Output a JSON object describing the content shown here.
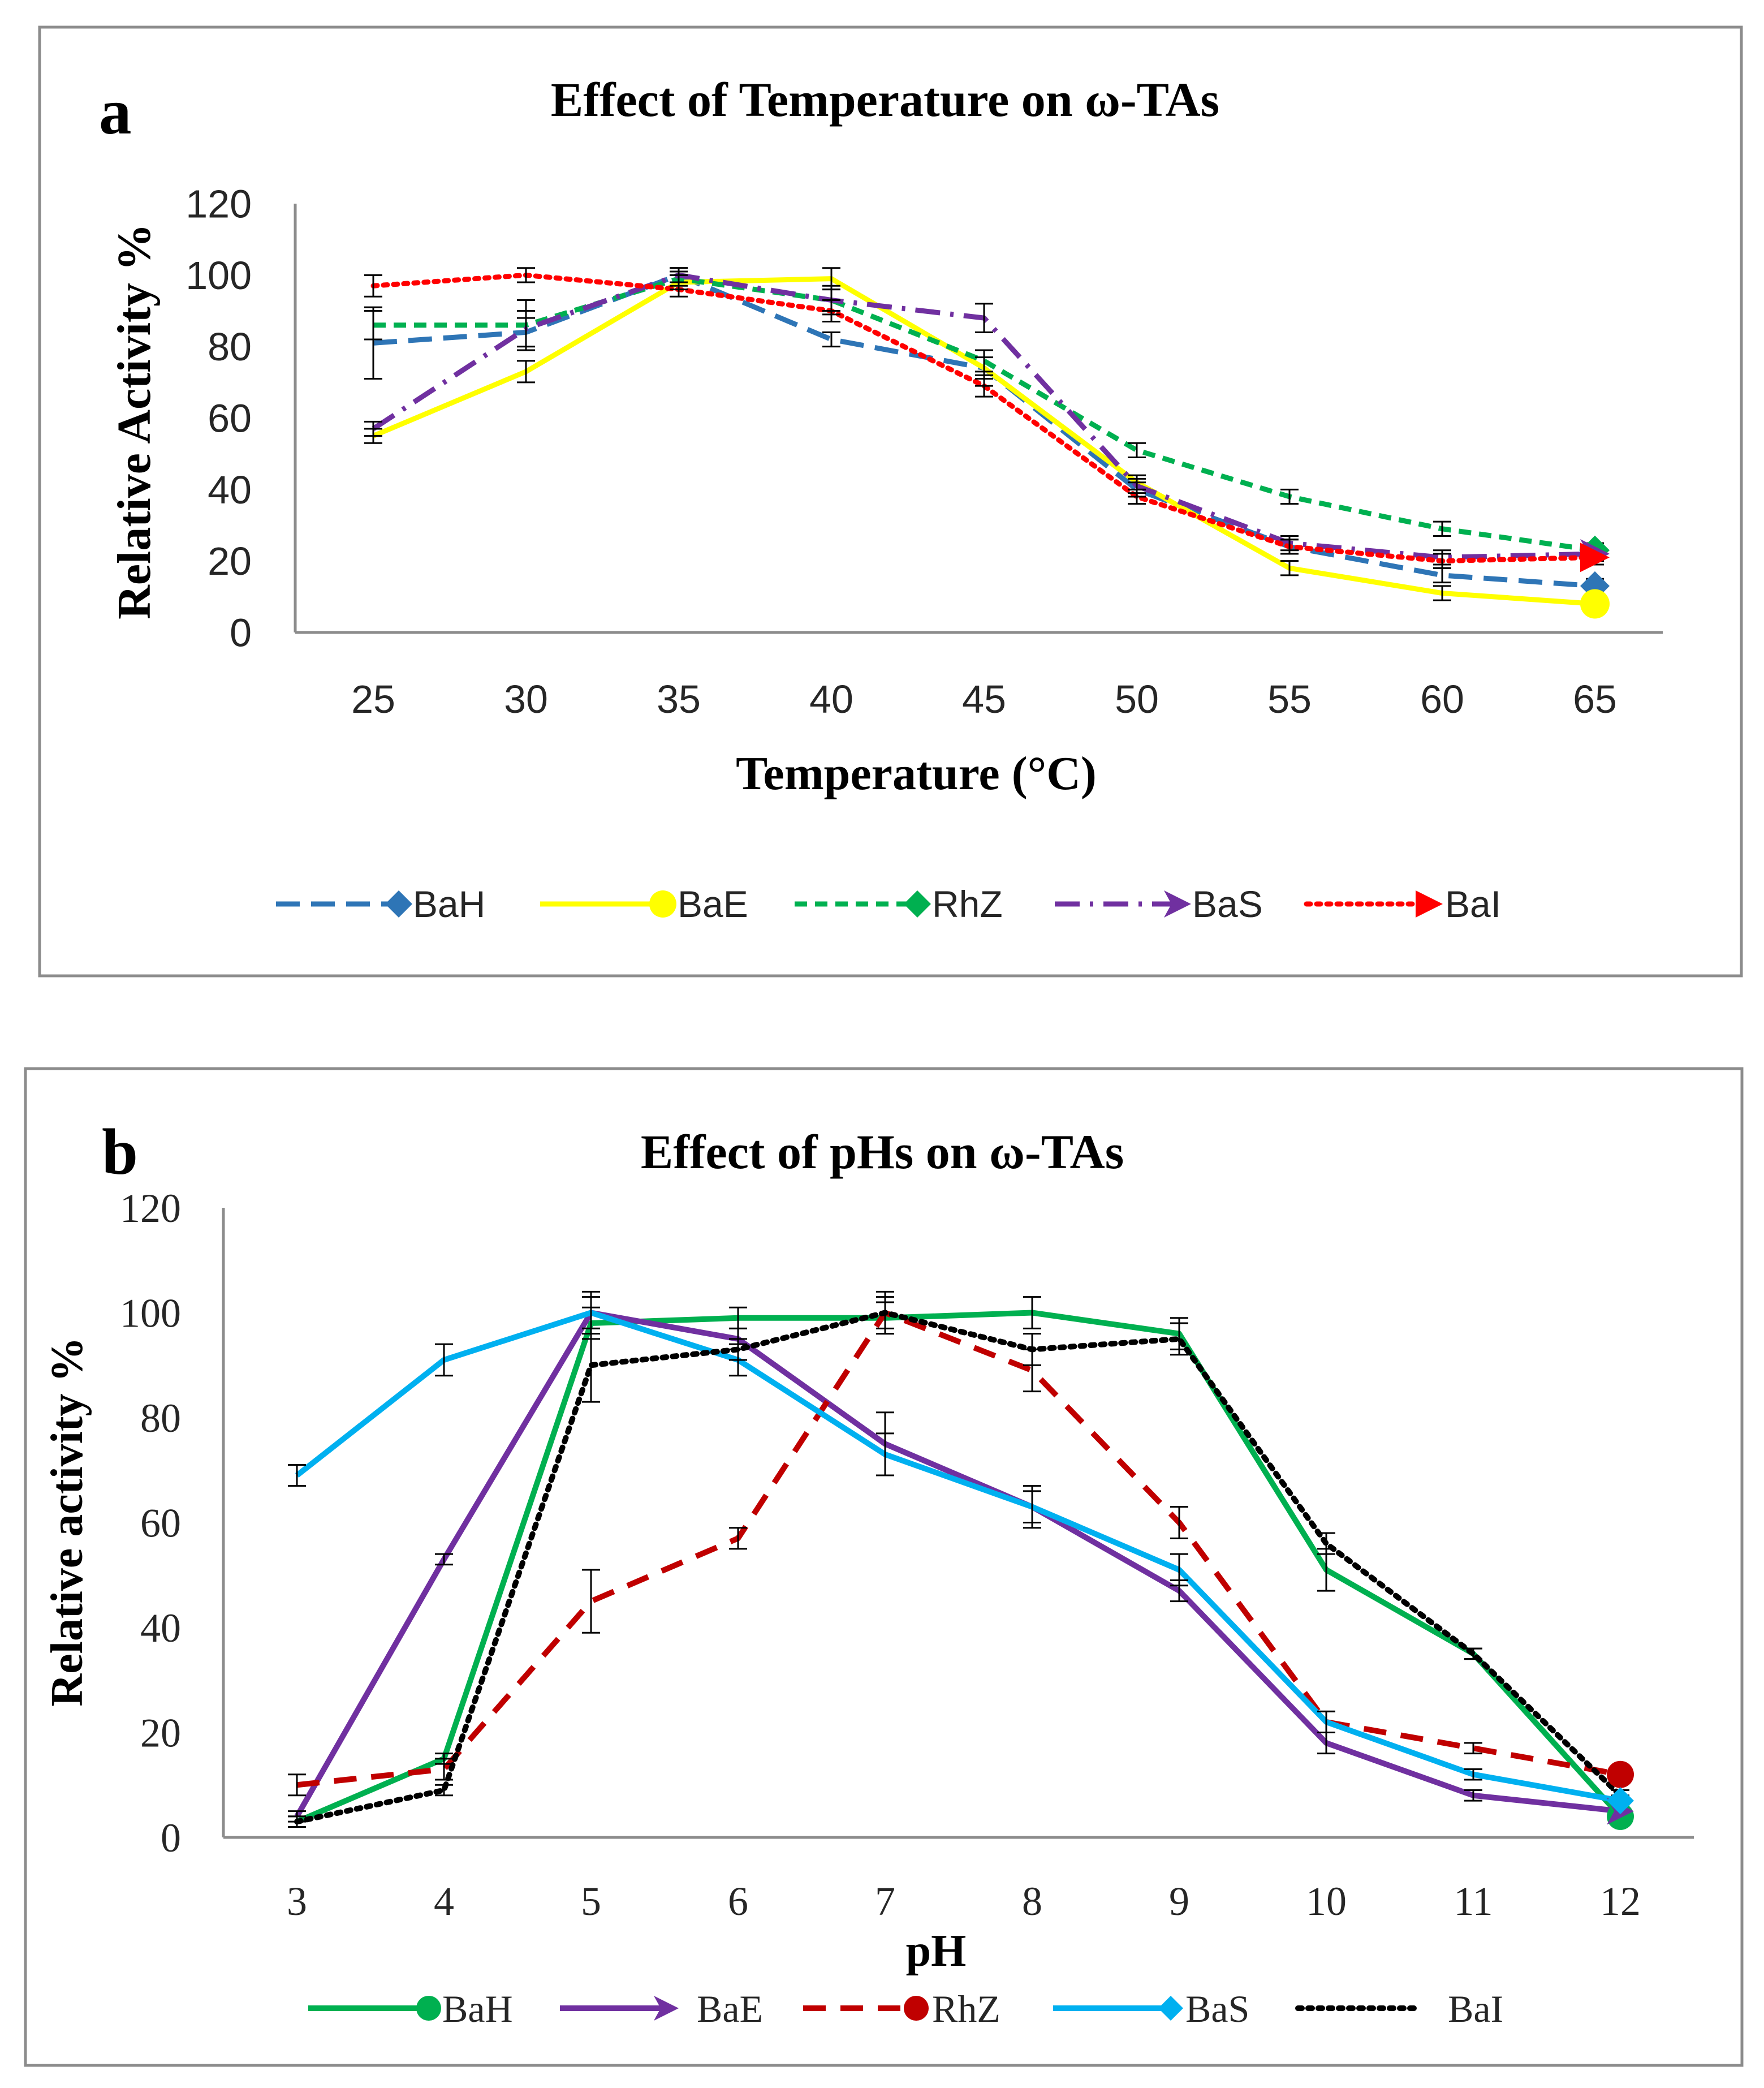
{
  "panels": [
    {
      "label": "a"
    },
    {
      "label": "b"
    }
  ],
  "chart_data": [
    {
      "type": "line",
      "title": "Effect of Temperature on ω-TAs",
      "xlabel": "Temperature (°C)",
      "ylabel": "Relative Activity %",
      "categories": [
        "25",
        "30",
        "35",
        "40",
        "45",
        "50",
        "55",
        "60",
        "65"
      ],
      "ylim": [
        0,
        120
      ],
      "yticks": [
        0,
        20,
        40,
        60,
        80,
        100,
        120
      ],
      "grid": false,
      "legend_position": "bottom",
      "series": [
        {
          "name": "BaH",
          "color": "#2e75b6",
          "dash": "long-dash",
          "marker": "diamond",
          "values": [
            81,
            84,
            100,
            82,
            74,
            40,
            24,
            16,
            13
          ],
          "errors": [
            10,
            4,
            2,
            2,
            5,
            2,
            2,
            2,
            2
          ]
        },
        {
          "name": "BaE",
          "color": "#ffff00",
          "dash": "solid",
          "marker": "circle",
          "values": [
            55,
            73,
            98,
            99,
            74,
            42,
            18,
            11,
            8
          ],
          "errors": [
            2,
            3,
            2,
            3,
            3,
            2,
            2,
            2,
            2
          ]
        },
        {
          "name": "RhZ",
          "color": "#00b050",
          "dash": "short-dash",
          "marker": "diamond",
          "values": [
            86,
            86,
            99,
            93,
            76,
            51,
            38,
            29,
            23
          ],
          "errors": [
            4,
            7,
            2,
            4,
            3,
            2,
            2,
            2,
            2
          ]
        },
        {
          "name": "BaS",
          "color": "#7030a0",
          "dash": "dash-dot",
          "marker": "arrow",
          "values": [
            57,
            85,
            100,
            93,
            88,
            41,
            25,
            21,
            22
          ],
          "errors": [
            2,
            5,
            2,
            3,
            4,
            2,
            2,
            2,
            2
          ]
        },
        {
          "name": "BaI",
          "color": "#ff0000",
          "dash": "dotted",
          "marker": "triangle",
          "values": [
            97,
            100,
            96,
            90,
            69,
            38,
            24,
            20,
            21
          ],
          "errors": [
            3,
            2,
            2,
            3,
            3,
            2,
            2,
            2,
            2
          ]
        }
      ]
    },
    {
      "type": "line",
      "title": "Effect of pHs on ω-TAs",
      "xlabel": "pH",
      "ylabel": "Relative activity %",
      "categories": [
        "3",
        "4",
        "5",
        "6",
        "7",
        "8",
        "9",
        "10",
        "11",
        "12"
      ],
      "ylim": [
        0,
        120
      ],
      "yticks": [
        0,
        20,
        40,
        60,
        80,
        100,
        120
      ],
      "grid": false,
      "legend_position": "bottom",
      "series": [
        {
          "name": "BaH",
          "color": "#00b050",
          "dash": "solid",
          "marker": "circle",
          "values": [
            3,
            15,
            98,
            99,
            99,
            100,
            96,
            51,
            35,
            4
          ],
          "errors": [
            1,
            1,
            3,
            2,
            3,
            3,
            3,
            4,
            1,
            1
          ]
        },
        {
          "name": "BaE",
          "color": "#7030a0",
          "dash": "solid",
          "marker": "arrow",
          "values": [
            4,
            53,
            100,
            95,
            75,
            63,
            47,
            18,
            8,
            5
          ],
          "errors": [
            1,
            1,
            3,
            2,
            6,
            4,
            2,
            2,
            1,
            1
          ]
        },
        {
          "name": "RhZ",
          "color": "#c00000",
          "dash": "dash",
          "marker": "circle",
          "values": [
            10,
            13,
            45,
            57,
            100,
            89,
            60,
            22,
            17,
            12
          ],
          "errors": [
            2,
            2,
            6,
            2,
            4,
            4,
            3,
            2,
            1,
            1
          ]
        },
        {
          "name": "BaS",
          "color": "#00b0f0",
          "dash": "solid",
          "marker": "diamond",
          "values": [
            69,
            91,
            100,
            91,
            73,
            63,
            51,
            22,
            12,
            7
          ],
          "errors": [
            2,
            3,
            4,
            3,
            4,
            3,
            3,
            2,
            1,
            1
          ]
        },
        {
          "name": "BaI",
          "color": "#000000",
          "dash": "dotted",
          "marker": "none",
          "values": [
            3,
            9,
            90,
            93,
            100,
            93,
            95,
            56,
            35,
            8
          ],
          "errors": [
            1,
            1,
            7,
            2,
            3,
            3,
            3,
            2,
            1,
            1
          ]
        }
      ]
    }
  ]
}
